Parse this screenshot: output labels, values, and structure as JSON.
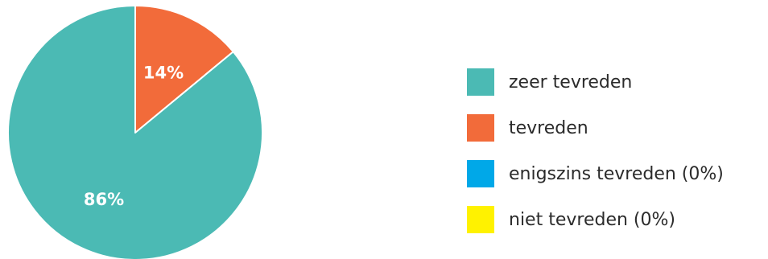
{
  "chart_data": {
    "type": "pie",
    "slices": [
      {
        "label": "zeer tevreden",
        "value": 86,
        "display": "86%",
        "color": "#4bbab4"
      },
      {
        "label": "tevreden",
        "value": 14,
        "display": "14%",
        "color": "#f26b3a"
      },
      {
        "label": "enigszins tevreden (0%)",
        "value": 0,
        "display": "",
        "color": "#00a8e8"
      },
      {
        "label": "niet tevreden (0%)",
        "value": 0,
        "display": "",
        "color": "#fff200"
      }
    ],
    "legend_position": "right"
  }
}
